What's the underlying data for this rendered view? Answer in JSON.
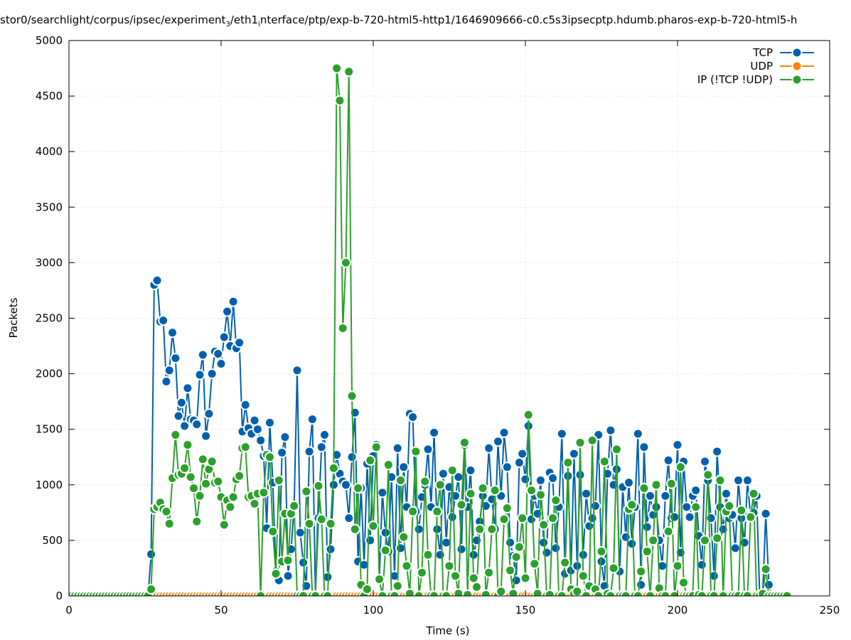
{
  "chart_data": {
    "type": "line",
    "title_parts": [
      "stor0/searchlight/corpus/ipsec/experiment",
      "3",
      "/eth1",
      "i",
      "nterface/ptp/exp-b-720-html5-http1/1646909666-c0.c5s3ipsecptp.hdumb.pharos-exp-b-720-html5-h"
    ],
    "xlabel": "Time (s)",
    "ylabel": "Packets",
    "xlim": [
      0,
      250
    ],
    "ylim": [
      0,
      5000
    ],
    "xticks": [
      0,
      50,
      100,
      150,
      200,
      250
    ],
    "yticks": [
      0,
      500,
      1000,
      1500,
      2000,
      2500,
      3000,
      3500,
      4000,
      4500,
      5000
    ],
    "grid": true,
    "legend_position": "top-right",
    "x_start": 0,
    "x_step": 1,
    "series": [
      {
        "name": "TCP",
        "color": "#0060ad",
        "values": [
          0,
          0,
          0,
          0,
          0,
          0,
          0,
          0,
          0,
          0,
          0,
          0,
          0,
          0,
          0,
          0,
          0,
          0,
          0,
          0,
          0,
          0,
          0,
          0,
          0,
          0,
          0,
          375,
          2800,
          2840,
          2470,
          2480,
          1930,
          2030,
          2370,
          2140,
          1620,
          1740,
          1530,
          1870,
          1590,
          1580,
          1545,
          1990,
          2170,
          1440,
          1640,
          2000,
          2200,
          2180,
          2090,
          2330,
          2560,
          2250,
          2650,
          2230,
          2280,
          1480,
          1720,
          1510,
          1460,
          1580,
          1500,
          1400,
          1260,
          610,
          1560,
          1020,
          220,
          140,
          1290,
          1430,
          180,
          420,
          800,
          2030,
          570,
          300,
          90,
          1300,
          1590,
          10,
          700,
          1340,
          1450,
          170,
          420,
          1000,
          1270,
          1100,
          1030,
          1000,
          700,
          1250,
          1650,
          310,
          970,
          280,
          1190,
          500,
          1260,
          1360,
          150,
          930,
          570,
          400,
          1070,
          180,
          1330,
          430,
          1160,
          800,
          1640,
          1610,
          760,
          600,
          890,
          1000,
          1320,
          800,
          1470,
          600,
          370,
          1100,
          480,
          980,
          710,
          900,
          1070,
          420,
          1360,
          800,
          1130,
          370,
          500,
          670,
          900,
          810,
          1330,
          870,
          600,
          1390,
          900,
          1470,
          1160,
          480,
          360,
          140,
          1200,
          1280,
          1050,
          1530,
          690,
          900,
          740,
          1040,
          480,
          390,
          1110,
          1060,
          430,
          800,
          1460,
          200,
          1080,
          230,
          1280,
          270,
          1090,
          370,
          920,
          630,
          700,
          810,
          1450,
          310,
          90,
          1100,
          1490,
          1000,
          1140,
          220,
          980,
          530,
          1020,
          470,
          800,
          1460,
          100,
          1340,
          620,
          900,
          730,
          800,
          500,
          270,
          900,
          1220,
          700,
          710,
          1360,
          390,
          1210,
          800,
          710,
          900,
          950,
          540,
          280,
          1210,
          1040,
          700,
          180,
          1300,
          800,
          600,
          920,
          700,
          730,
          430,
          1040,
          700,
          480,
          1040,
          700,
          750,
          900,
          0,
          20,
          740,
          100,
          0,
          0,
          0,
          0,
          0,
          0
        ]
      },
      {
        "name": "UDP",
        "color": "#ff7f0e",
        "values": [
          0,
          0,
          0,
          0,
          0,
          0,
          0,
          0,
          0,
          0,
          0,
          0,
          0,
          0,
          0,
          0,
          0,
          0,
          0,
          0,
          0,
          0,
          0,
          0,
          0,
          0,
          0,
          0,
          0,
          0,
          0,
          0,
          0,
          0,
          0,
          0,
          0,
          0,
          0,
          0,
          0,
          0,
          0,
          0,
          0,
          0,
          0,
          0,
          0,
          0,
          0,
          0,
          0,
          0,
          0,
          0,
          0,
          0,
          0,
          0,
          0,
          0,
          0,
          0,
          0,
          0,
          0,
          0,
          0,
          0,
          0,
          0,
          0,
          0,
          0,
          0,
          0,
          0,
          0,
          0,
          0,
          0,
          0,
          0,
          0,
          0,
          0,
          0,
          0,
          0,
          0,
          0,
          0,
          0,
          0,
          0,
          0,
          0,
          0,
          0,
          0,
          0,
          0,
          0,
          0,
          0,
          0,
          0,
          0,
          0,
          0,
          0,
          0,
          0,
          0,
          0,
          0,
          0,
          0,
          0,
          0,
          0,
          0,
          0,
          0,
          0,
          0,
          0,
          0,
          0,
          0,
          0,
          0,
          0,
          0,
          0,
          0,
          0,
          0,
          0,
          0,
          0,
          0,
          0,
          0,
          0,
          0,
          0,
          0,
          0,
          0,
          0,
          0,
          0,
          0,
          0,
          0,
          0,
          0,
          0,
          0,
          0,
          0,
          0,
          0,
          0,
          0,
          0,
          0,
          0,
          0,
          0,
          0,
          0,
          0,
          0,
          0,
          0,
          0,
          0,
          0,
          0,
          0,
          0,
          0,
          0,
          0,
          0,
          0,
          0,
          0,
          0,
          0,
          0,
          0,
          0,
          0,
          0,
          0,
          0,
          0,
          0,
          0,
          0,
          0,
          0,
          0,
          0,
          0,
          0,
          0,
          0,
          0,
          0,
          0,
          0,
          0,
          0,
          0,
          0,
          0,
          0,
          0,
          0,
          0,
          0,
          0,
          0,
          0,
          0,
          0,
          0,
          0,
          0,
          0,
          0,
          0
        ]
      },
      {
        "name": "IP (!TCP  !UDP)",
        "color": "#2ca02c",
        "values": [
          0,
          0,
          0,
          0,
          0,
          0,
          0,
          0,
          0,
          0,
          0,
          0,
          0,
          0,
          0,
          0,
          0,
          0,
          0,
          0,
          0,
          0,
          0,
          0,
          0,
          0,
          0,
          60,
          780,
          800,
          840,
          780,
          760,
          650,
          1060,
          1450,
          1090,
          1100,
          1150,
          1360,
          1070,
          970,
          670,
          900,
          1230,
          1010,
          1140,
          1210,
          1020,
          1030,
          890,
          640,
          860,
          800,
          890,
          1050,
          1080,
          1330,
          1340,
          890,
          900,
          830,
          920,
          0,
          930,
          1270,
          1250,
          580,
          200,
          1040,
          310,
          740,
          320,
          740,
          810,
          0,
          0,
          0,
          940,
          650,
          0,
          0,
          990,
          690,
          0,
          0,
          650,
          1150,
          4750,
          4460,
          2410,
          3000,
          4720,
          1800,
          600,
          970,
          100,
          0,
          60,
          1220,
          630,
          1340,
          150,
          0,
          410,
          1180,
          0,
          0,
          90,
          1040,
          530,
          270,
          20,
          760,
          1300,
          0,
          210,
          1030,
          370,
          0,
          0,
          760,
          1000,
          0,
          0,
          270,
          1130,
          180,
          20,
          820,
          1380,
          10,
          920,
          160,
          80,
          600,
          970,
          10,
          210,
          600,
          950,
          0,
          40,
          690,
          790,
          230,
          20,
          350,
          440,
          700,
          160,
          1630,
          950,
          290,
          20,
          910,
          640,
          0,
          10,
          700,
          860,
          0,
          0,
          300,
          1200,
          60,
          20,
          40,
          1380,
          180,
          0,
          90,
          1400,
          60,
          0,
          400,
          1210,
          20,
          0,
          250,
          1320,
          0,
          0,
          0,
          780,
          820,
          0,
          0,
          220,
          970,
          400,
          0,
          500,
          1000,
          70,
          0,
          0,
          580,
          1010,
          0,
          270,
          1160,
          120,
          0,
          0,
          0,
          800,
          10,
          0,
          500,
          1090,
          0,
          0,
          520,
          1040,
          0,
          760,
          810,
          0,
          0,
          0,
          770,
          0,
          0,
          710,
          920,
          0,
          0,
          20,
          240,
          0,
          0,
          0,
          0,
          0,
          0,
          0
        ]
      }
    ]
  }
}
